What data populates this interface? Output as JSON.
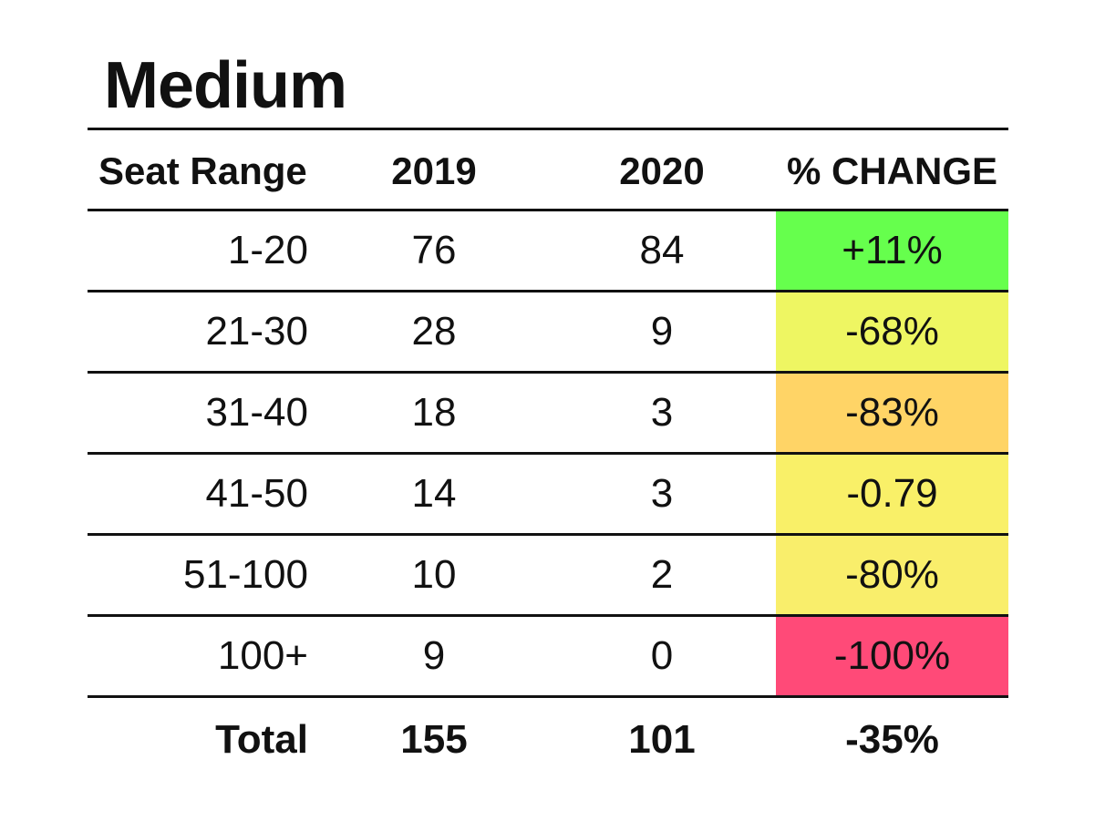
{
  "chart_data": {
    "type": "table",
    "title": "Medium",
    "columns": [
      "Seat Range",
      "2019",
      "2020",
      "% CHANGE"
    ],
    "rows": [
      {
        "range": "1-20",
        "y2019": "76",
        "y2020": "84",
        "change": "+11%",
        "color": "#66ff4d"
      },
      {
        "range": "21-30",
        "y2019": "28",
        "y2020": "9",
        "change": "-68%",
        "color": "#eef662"
      },
      {
        "range": "31-40",
        "y2019": "18",
        "y2020": "3",
        "change": "-83%",
        "color": "#ffd466"
      },
      {
        "range": "41-50",
        "y2019": "14",
        "y2020": "3",
        "change": "-0.79",
        "color": "#f9f068"
      },
      {
        "range": "51-100",
        "y2019": "10",
        "y2020": "2",
        "change": "-80%",
        "color": "#f9ee6b"
      },
      {
        "range": "100+",
        "y2019": "9",
        "y2020": "0",
        "change": "-100%",
        "color": "#ff4a78"
      }
    ],
    "total": {
      "label": "Total",
      "y2019": "155",
      "y2020": "101",
      "change": "-35%"
    }
  }
}
